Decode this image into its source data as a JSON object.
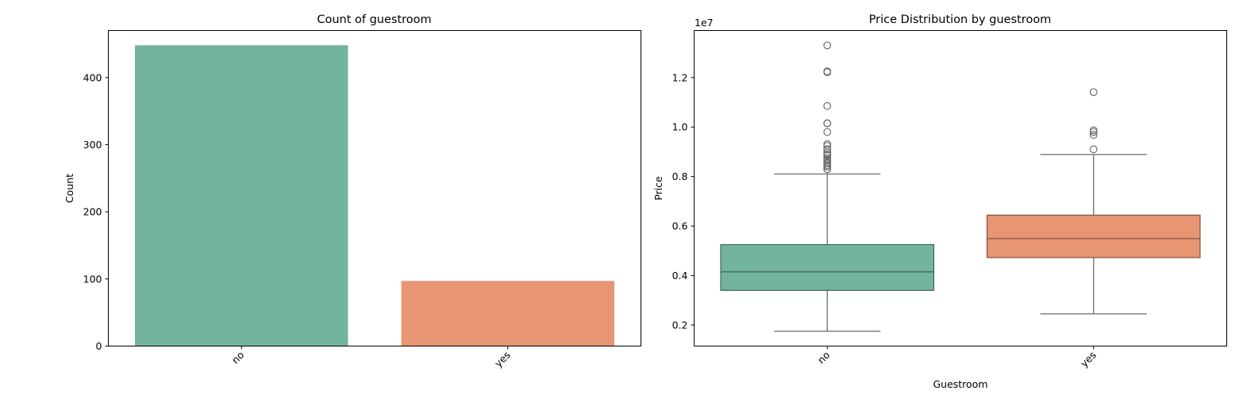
{
  "chart_data": [
    {
      "type": "bar",
      "title": "Count of guestroom",
      "xlabel": "",
      "ylabel": "Count",
      "categories": [
        "no",
        "yes"
      ],
      "values": [
        448,
        97
      ],
      "colors": [
        "#72b4a0",
        "#e89574"
      ],
      "ylim": [
        0,
        470
      ],
      "yticks": [
        0,
        100,
        200,
        300,
        400
      ],
      "ytick_labels": [
        "0",
        "100",
        "200",
        "300",
        "400"
      ],
      "xtick_rotation": 45,
      "grid": false,
      "legend": "none"
    },
    {
      "type": "box",
      "title": "Price Distribution by guestroom",
      "xlabel": "Guestroom",
      "ylabel": "Price",
      "y_offset_label": "1e7",
      "categories": [
        "no",
        "yes"
      ],
      "colors": [
        "#72b4a0",
        "#e89574"
      ],
      "ylim": [
        1150000,
        13900000
      ],
      "yticks": [
        2000000,
        4000000,
        6000000,
        8000000,
        10000000,
        12000000
      ],
      "ytick_labels": [
        "0.2",
        "0.4",
        "0.6",
        "0.8",
        "1.0",
        "1.2"
      ],
      "xtick_rotation": 45,
      "grid": false,
      "legend": "none",
      "boxes": [
        {
          "category": "no",
          "whisker_low": 1750000,
          "q1": 3400000,
          "median": 4150000,
          "q3": 5250000,
          "whisker_high": 8100000,
          "outliers": [
            13300000,
            12250000,
            12215000,
            10850000,
            10150000,
            10150000,
            9800000,
            9310000,
            9240000,
            9100000,
            9100000,
            8960000,
            8890000,
            8855000,
            8750000,
            8680000,
            8645000,
            8575000,
            8540000,
            8463000,
            8400000,
            8400000,
            8400000,
            8295000,
            8295000
          ]
        },
        {
          "category": "yes",
          "whisker_low": 2450000,
          "q1": 4725000,
          "median": 5495000,
          "q3": 6440000,
          "whisker_high": 8890000,
          "outliers": [
            11410000,
            9870000,
            9800000,
            9681000,
            9100000
          ]
        }
      ]
    }
  ]
}
